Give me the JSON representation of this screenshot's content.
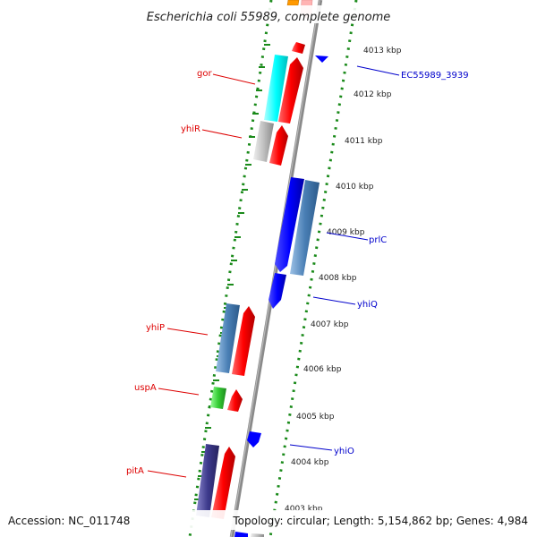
{
  "map": {
    "title": "Escherichia coli 55989, complete genome",
    "accession": "Accession: NC_011748",
    "topology": "Topology: circular; Length: 5,154,862 bp; Genes: 4,984",
    "colors": {
      "backbone": "#8a8a8a",
      "dots": "#1a8a1a",
      "red": "#ff0000",
      "blue": "#0000ff",
      "steelblue": "#4a7fb5",
      "cyan": "#00ffff",
      "grey": "#bdbdbd",
      "green": "#33cc33",
      "navy": "#3d3a8c",
      "orange": "#ff9900",
      "pink": "#ffb0b0",
      "label_red": "#dd0000",
      "label_blue": "#0000cc"
    },
    "ticks": [
      "4013 kbp",
      "4012 kbp",
      "4011 kbp",
      "4010 kbp",
      "4009 kbp",
      "4008 kbp",
      "4007 kbp",
      "4006 kbp",
      "4005 kbp",
      "4004 kbp",
      "4003 kbp"
    ],
    "gene_labels": {
      "gor": "gor",
      "yhiR": "yhiR",
      "yhiP": "yhiP",
      "uspA": "uspA",
      "pitA": "pitA",
      "ec3939": "EC55989_3939",
      "prlC": "prlC",
      "yhiQ": "yhiQ",
      "yhiO": "yhiO"
    }
  }
}
